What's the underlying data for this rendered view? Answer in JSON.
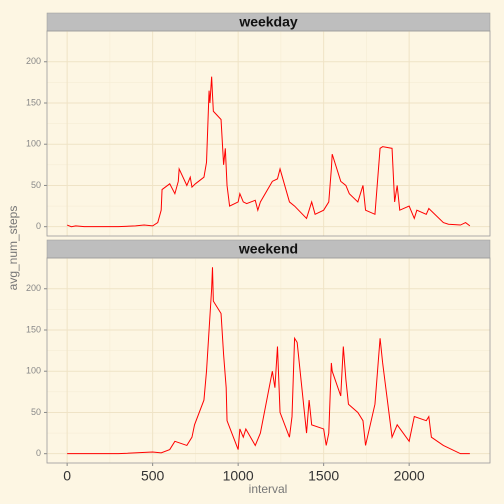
{
  "chart_data": {
    "type": "line",
    "xlabel": "interval",
    "ylabel": "avg_num_steps",
    "color": "#ff0000",
    "grid": true,
    "xlim": [
      -117.75,
      2472.75
    ],
    "xticks": [
      0,
      500,
      1000,
      1500,
      2000
    ],
    "ylim": [
      -11.3,
      237.3
    ],
    "yticks": [
      0,
      50,
      100,
      150,
      200
    ],
    "facets": [
      {
        "name": "weekday",
        "x": [
          0,
          25,
          50,
          100,
          200,
          300,
          400,
          450,
          500,
          530,
          550,
          555,
          600,
          630,
          650,
          655,
          700,
          720,
          730,
          750,
          800,
          815,
          830,
          835,
          845,
          850,
          855,
          900,
          915,
          925,
          935,
          950,
          1000,
          1010,
          1030,
          1050,
          1100,
          1115,
          1130,
          1200,
          1230,
          1245,
          1300,
          1330,
          1400,
          1430,
          1450,
          1500,
          1530,
          1545,
          1550,
          1600,
          1630,
          1650,
          1700,
          1730,
          1745,
          1800,
          1830,
          1845,
          1900,
          1915,
          1930,
          1945,
          2000,
          2030,
          2045,
          2100,
          2115,
          2200,
          2230,
          2300,
          2330,
          2355
        ],
        "values": [
          2,
          0,
          1,
          0,
          0,
          0,
          1,
          2,
          1,
          5,
          20,
          45,
          52,
          40,
          55,
          70,
          50,
          60,
          48,
          52,
          60,
          78,
          165,
          150,
          182,
          160,
          140,
          130,
          75,
          95,
          50,
          25,
          30,
          40,
          30,
          28,
          32,
          20,
          30,
          55,
          58,
          70,
          30,
          25,
          10,
          30,
          15,
          20,
          30,
          70,
          88,
          55,
          50,
          40,
          30,
          50,
          20,
          15,
          95,
          97,
          95,
          30,
          50,
          20,
          25,
          10,
          20,
          15,
          22,
          5,
          3,
          2,
          5,
          1
        ]
      },
      {
        "name": "weekend",
        "x": [
          0,
          300,
          500,
          550,
          600,
          630,
          700,
          730,
          745,
          800,
          815,
          830,
          845,
          850,
          855,
          900,
          915,
          930,
          935,
          1000,
          1010,
          1030,
          1045,
          1100,
          1130,
          1200,
          1215,
          1230,
          1245,
          1300,
          1315,
          1330,
          1345,
          1400,
          1415,
          1430,
          1500,
          1515,
          1530,
          1545,
          1550,
          1600,
          1615,
          1630,
          1645,
          1700,
          1730,
          1745,
          1800,
          1830,
          1845,
          1900,
          1930,
          2000,
          2030,
          2100,
          2115,
          2130,
          2200,
          2300,
          2355
        ],
        "values": [
          0,
          0,
          2,
          1,
          5,
          15,
          10,
          20,
          35,
          65,
          100,
          150,
          200,
          226,
          185,
          170,
          120,
          80,
          40,
          5,
          30,
          20,
          30,
          10,
          25,
          100,
          80,
          130,
          50,
          20,
          45,
          140,
          135,
          25,
          65,
          35,
          30,
          10,
          25,
          110,
          100,
          70,
          130,
          90,
          60,
          50,
          40,
          10,
          60,
          140,
          110,
          20,
          35,
          15,
          45,
          40,
          45,
          20,
          10,
          0,
          0
        ]
      }
    ]
  }
}
